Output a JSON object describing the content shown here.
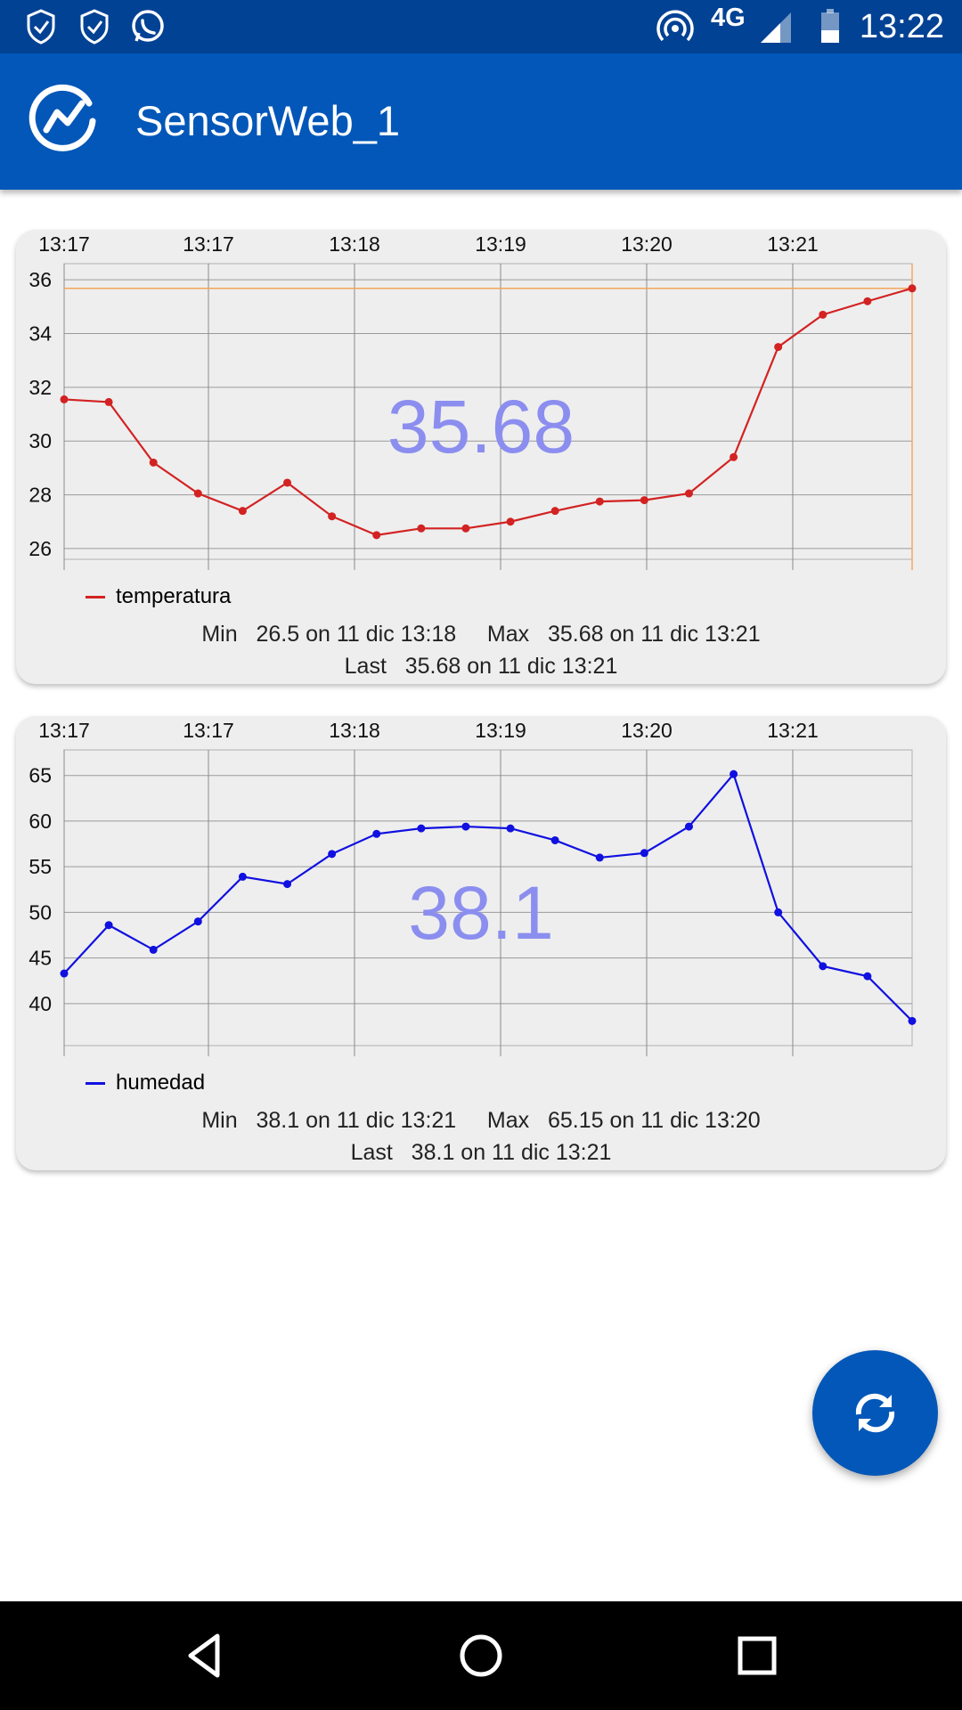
{
  "status_bar": {
    "time": "13:22",
    "network": "4G",
    "icons": [
      "shield-notification-icon",
      "shield-notification-icon",
      "whatsapp-icon",
      "hotspot-icon",
      "signal-icon",
      "battery-icon"
    ]
  },
  "app_bar": {
    "title": "SensorWeb_1",
    "logo_icon": "chart-logo-icon"
  },
  "charts": {
    "temperature": {
      "current_value": "35.68",
      "legend": "temperatura",
      "stats_line1": "Min   26.5 on 11 dic 13:18     Max   35.68 on 11 dic 13:21",
      "stats_line2": "Last   35.68 on 11 dic 13:21"
    },
    "humidity": {
      "current_value": "38.1",
      "legend": "humedad",
      "stats_line1": "Min   38.1 on 11 dic 13:21     Max   65.15 on 11 dic 13:20",
      "stats_line2": "Last   38.1 on 11 dic 13:21"
    }
  },
  "chart_data": [
    {
      "type": "line",
      "title": "",
      "x_tick_labels": [
        "13:17",
        "13:17",
        "13:18",
        "13:19",
        "13:20",
        "13:21"
      ],
      "y_ticks": [
        26,
        28,
        30,
        32,
        34,
        36
      ],
      "ylim": [
        25.6,
        36.6
      ],
      "series": [
        {
          "name": "temperatura",
          "color": "#d32222",
          "values": [
            31.55,
            31.45,
            29.2,
            28.05,
            27.4,
            28.45,
            27.2,
            26.5,
            26.75,
            26.75,
            27.0,
            27.4,
            27.75,
            27.8,
            28.05,
            29.4,
            33.5,
            34.7,
            35.2,
            35.68
          ]
        }
      ],
      "reference_line": {
        "value": 35.68,
        "color": "#f5a55a"
      },
      "grid": true,
      "legend_position": "bottom-left"
    },
    {
      "type": "line",
      "title": "",
      "x_tick_labels": [
        "13:17",
        "13:17",
        "13:18",
        "13:19",
        "13:20",
        "13:21"
      ],
      "y_ticks": [
        40,
        45,
        50,
        55,
        60,
        65
      ],
      "ylim": [
        35.4,
        67.8
      ],
      "series": [
        {
          "name": "humedad",
          "color": "#1010e0",
          "values": [
            43.3,
            48.6,
            45.9,
            49.0,
            53.9,
            53.1,
            56.4,
            58.6,
            59.2,
            59.4,
            59.2,
            57.9,
            56.0,
            56.5,
            59.4,
            65.15,
            50.0,
            44.1,
            43.0,
            38.1
          ]
        }
      ],
      "grid": true,
      "legend_position": "bottom-left"
    }
  ]
}
